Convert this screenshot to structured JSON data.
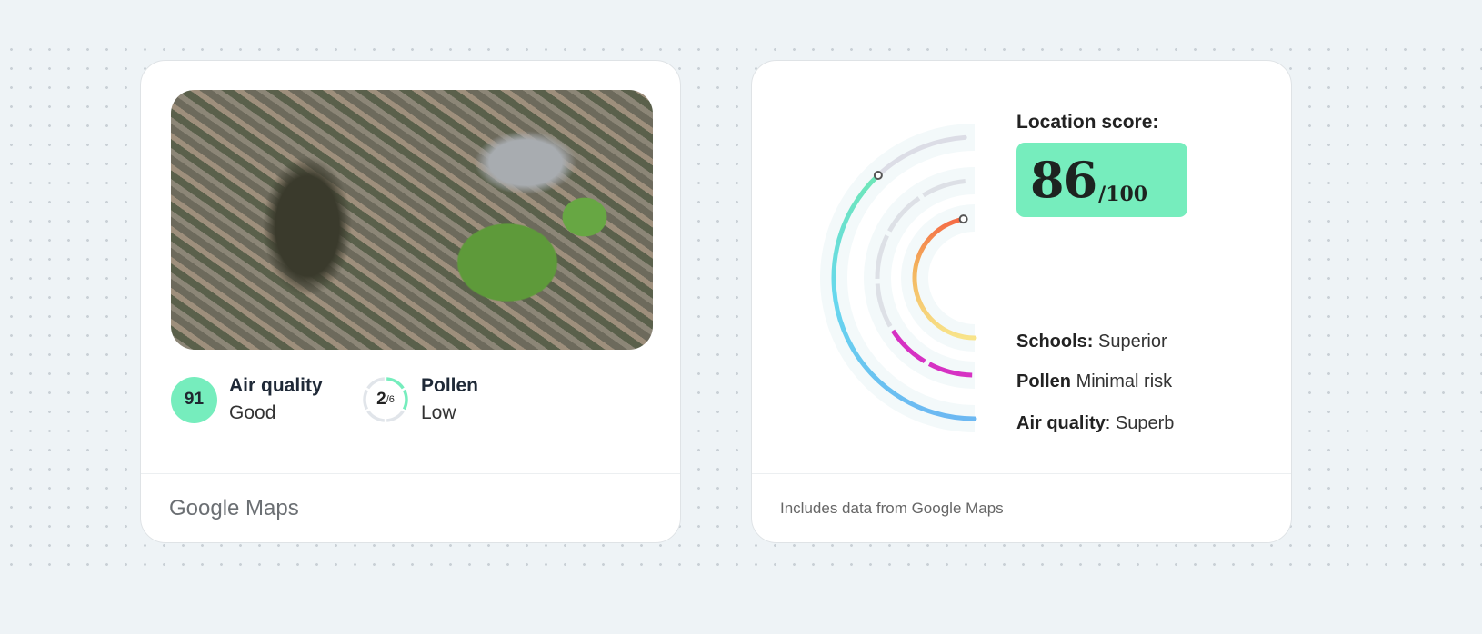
{
  "left_card": {
    "air_quality": {
      "value": "91",
      "label": "Air quality",
      "status": "Good",
      "color": "#76edbd"
    },
    "pollen": {
      "value": "2",
      "max": "/6",
      "label": "Pollen",
      "status": "Low",
      "level": 2,
      "levels": 6
    },
    "footer": "Google Maps"
  },
  "right_card": {
    "title": "Location score:",
    "score": "86",
    "score_max": "/100",
    "rows": [
      {
        "key": "Schools:",
        "value": "Superior"
      },
      {
        "key": "Pollen",
        "value": "Minimal risk"
      },
      {
        "key": "Air quality",
        "sep": ":",
        "value": "Superb"
      }
    ],
    "arcs": {
      "air_quality_fraction": 0.76,
      "pollen_segments_filled": 2,
      "pollen_segments": 6,
      "schools_fraction": 0.94
    },
    "colors": {
      "accent": "#76edbd",
      "pollen": "#d632c3",
      "gray": "#dde0e6"
    },
    "footer": "Includes data from Google Maps"
  }
}
